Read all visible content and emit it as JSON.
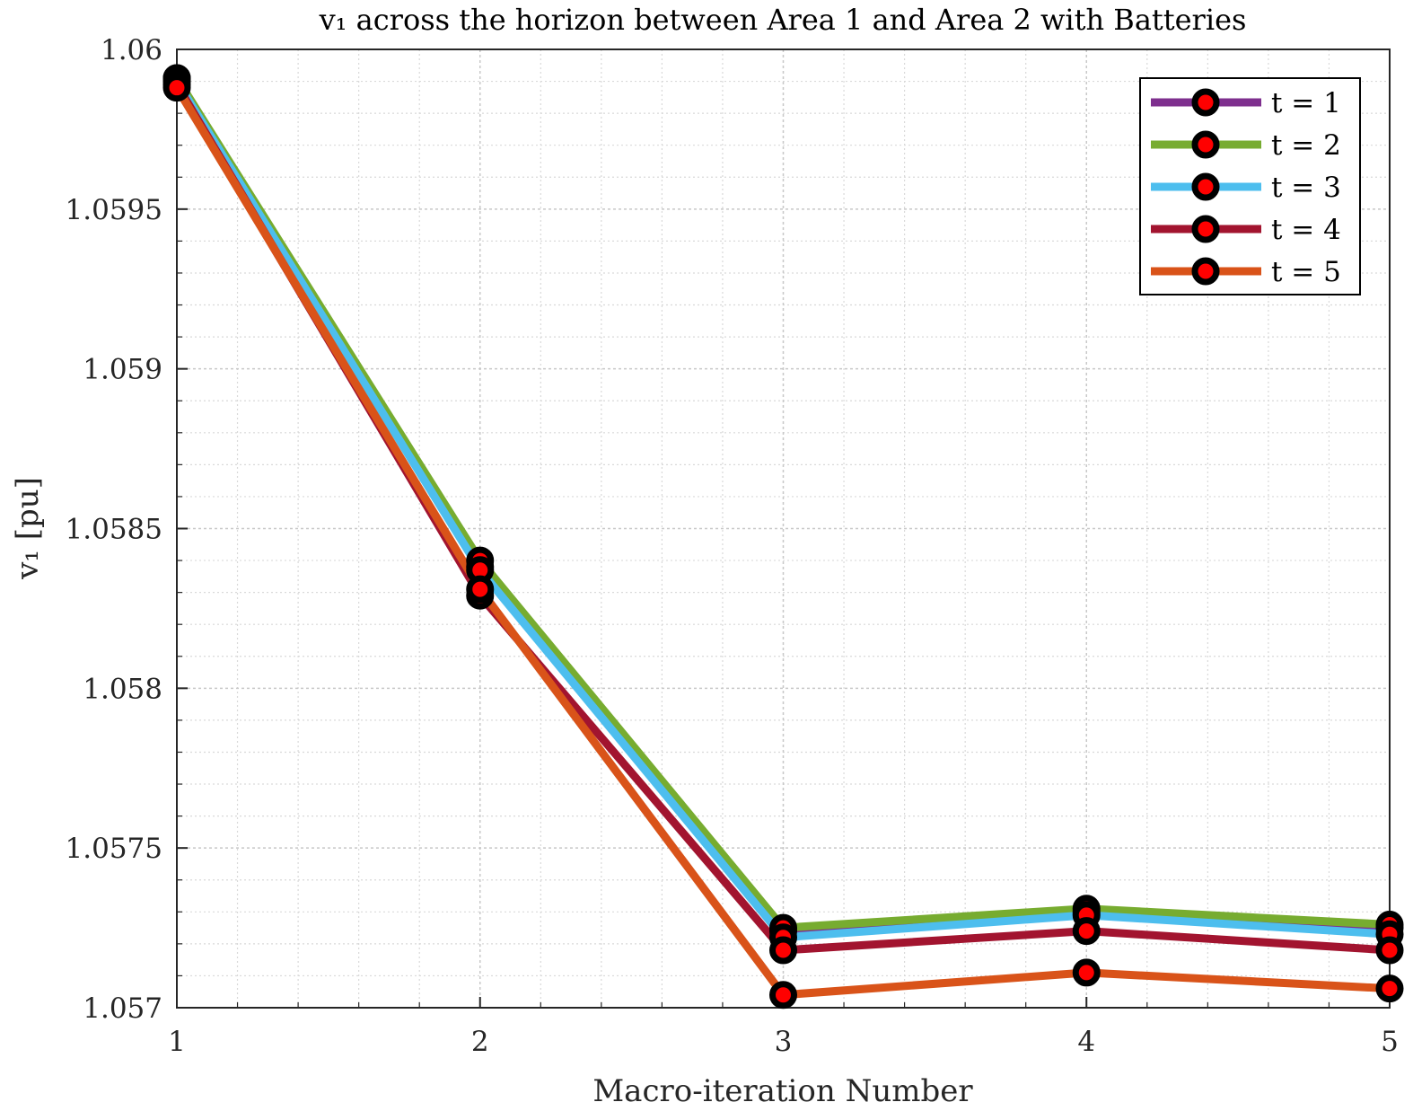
{
  "chart_data": {
    "type": "line",
    "title": "v₁ across the horizon between Area 1 and Area 2 with Batteries",
    "xlabel": "Macro-iteration Number",
    "ylabel": "v₁ [pu]",
    "x": [
      1,
      2,
      3,
      4,
      5
    ],
    "x_ticks": [
      "1",
      "2",
      "3",
      "4",
      "5"
    ],
    "y_ticks": [
      "1.057",
      "1.0575",
      "1.058",
      "1.0585",
      "1.059",
      "1.0595",
      "1.06"
    ],
    "y_tick_values": [
      1.057,
      1.0575,
      1.058,
      1.0585,
      1.059,
      1.0595,
      1.06
    ],
    "xlim": [
      1,
      5
    ],
    "ylim": [
      1.057,
      1.06
    ],
    "grid": true,
    "minor_grid": true,
    "legend_position": "top-right",
    "marker": {
      "face": "#ff0000",
      "edge": "#000000"
    },
    "series": [
      {
        "name": "t = 1",
        "color": "#7e2f8e",
        "values": [
          1.05991,
          1.05838,
          1.05724,
          1.0573,
          1.05725
        ]
      },
      {
        "name": "t = 2",
        "color": "#77ac30",
        "values": [
          1.05991,
          1.0584,
          1.05725,
          1.05731,
          1.05726
        ]
      },
      {
        "name": "t = 3",
        "color": "#4dbeee",
        "values": [
          1.0599,
          1.05837,
          1.05722,
          1.05729,
          1.05723
        ]
      },
      {
        "name": "t = 4",
        "color": "#a2142f",
        "values": [
          1.05989,
          1.05829,
          1.05718,
          1.05724,
          1.05718
        ]
      },
      {
        "name": "t = 5",
        "color": "#d95319",
        "values": [
          1.05988,
          1.05831,
          1.05704,
          1.05711,
          1.05706
        ]
      }
    ]
  }
}
